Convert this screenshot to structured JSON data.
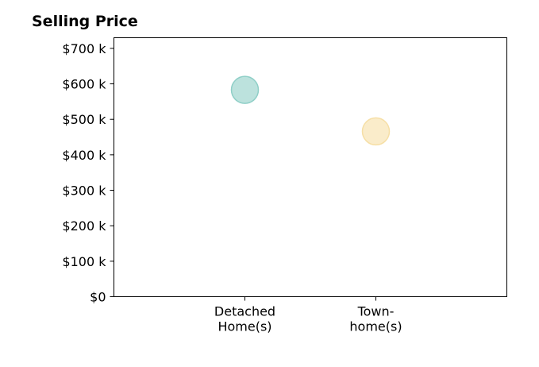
{
  "chart_data": {
    "type": "scatter",
    "title": "Selling Price",
    "xlabel": "",
    "ylabel": "",
    "categories": [
      [
        "Detached",
        "Home(s)"
      ],
      [
        "Town-",
        "home(s)"
      ]
    ],
    "series": [
      {
        "values": [
          583,
          466
        ],
        "colors": [
          "#8fcfc7",
          "#f6dfa6"
        ]
      }
    ],
    "yticks": [
      0,
      100,
      200,
      300,
      400,
      500,
      600,
      700
    ],
    "ytick_labels": [
      "$0",
      "$100 k",
      "$200 k",
      "$300 k",
      "$400 k",
      "$500 k",
      "$600 k",
      "$700 k"
    ],
    "ylim": [
      0,
      730
    ],
    "grid": false,
    "legend": "none"
  }
}
